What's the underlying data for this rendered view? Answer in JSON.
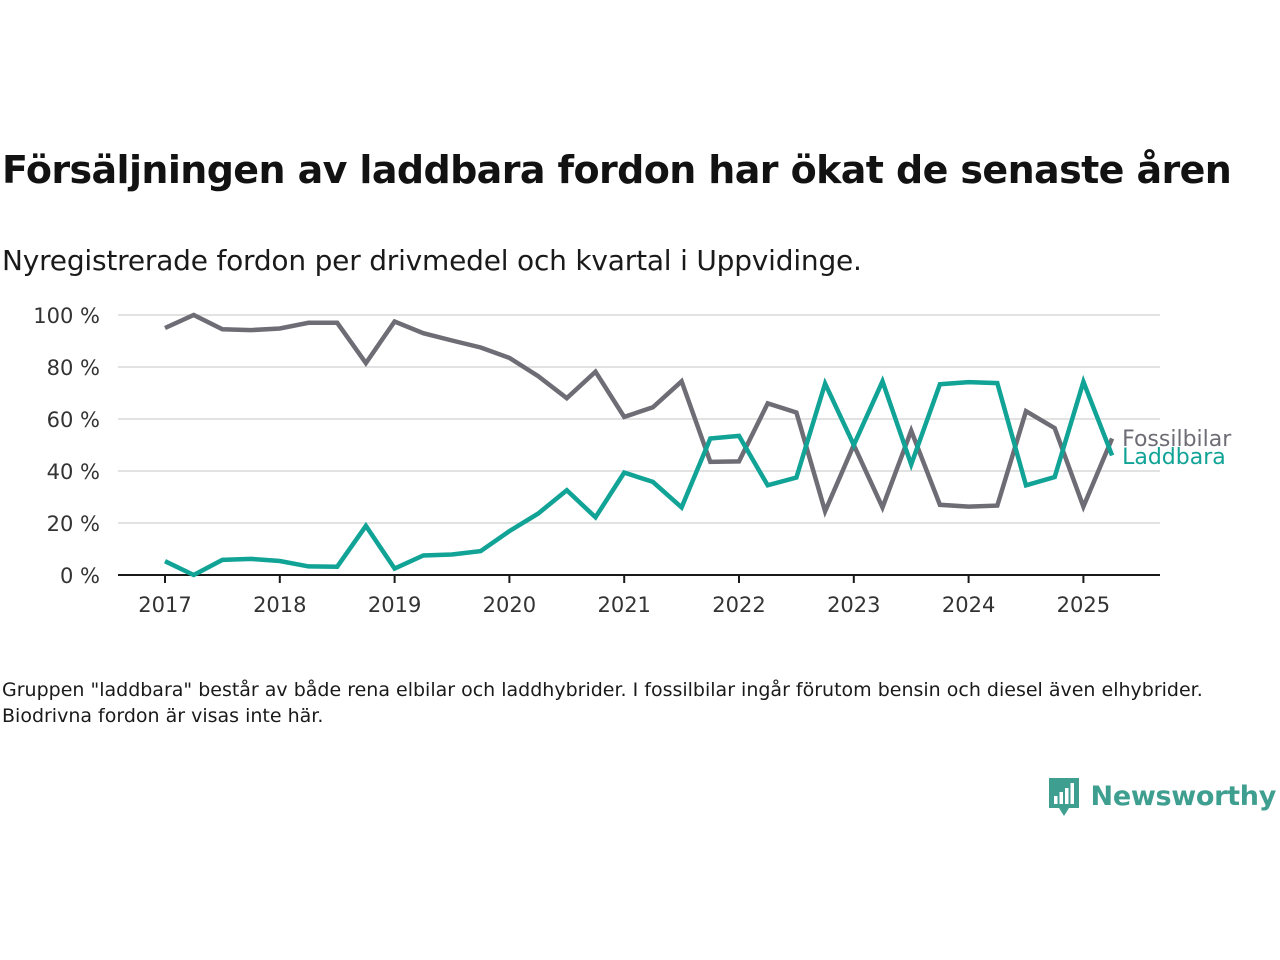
{
  "header": {
    "title": "Försäljningen av laddbara fordon har ökat de senaste åren",
    "subtitle": "Nyregistrerade fordon per drivmedel och kvartal i Uppvidinge."
  },
  "chart_data": {
    "type": "line",
    "x": [
      "2017 Q1",
      "2017 Q2",
      "2017 Q3",
      "2017 Q4",
      "2018 Q1",
      "2018 Q2",
      "2018 Q3",
      "2018 Q4",
      "2019 Q1",
      "2019 Q2",
      "2019 Q3",
      "2019 Q4",
      "2020 Q1",
      "2020 Q2",
      "2020 Q3",
      "2020 Q4",
      "2021 Q1",
      "2021 Q2",
      "2021 Q3",
      "2021 Q4",
      "2022 Q1",
      "2022 Q2",
      "2022 Q3",
      "2022 Q4",
      "2023 Q1",
      "2023 Q2",
      "2023 Q3",
      "2023 Q4",
      "2024 Q1",
      "2024 Q2",
      "2024 Q3",
      "2024 Q4",
      "2025 Q1",
      "2025 Q2"
    ],
    "x_ticks": [
      "2017",
      "2018",
      "2019",
      "2020",
      "2021",
      "2022",
      "2023",
      "2024",
      "2025"
    ],
    "y_ticks": [
      "0 %",
      "20 %",
      "40 %",
      "60 %",
      "80 %",
      "100 %"
    ],
    "ylim": [
      0,
      100
    ],
    "grid": "horizontal",
    "legend": "direct labels at line ends",
    "series": [
      {
        "name": "Fossilbilar",
        "color": "#6e6d75",
        "values": [
          95,
          100,
          94.5,
          94.2,
          94.8,
          97,
          97,
          81.5,
          97.5,
          93,
          90.2,
          87.5,
          83.5,
          76.5,
          68,
          78.2,
          60.8,
          64.5,
          74.5,
          43.5,
          43.7,
          66,
          62.5,
          24.5,
          50,
          26,
          55.5,
          27,
          26.3,
          26.7,
          63,
          56.5,
          26.3,
          52.5
        ]
      },
      {
        "name": "Laddbara",
        "color": "#10a396",
        "values": [
          5.3,
          0,
          5.8,
          6.2,
          5.4,
          3.3,
          3.2,
          18.9,
          2.5,
          7.5,
          7.9,
          9.2,
          16.9,
          23.6,
          32.6,
          22.2,
          39.4,
          35.8,
          26,
          52.5,
          53.5,
          34.5,
          37.5,
          73.6,
          50,
          74.5,
          42.5,
          73.4,
          74.2,
          73.8,
          34.5,
          37.7,
          74.3,
          46
        ]
      }
    ]
  },
  "footer": {
    "note": "Gruppen \"laddbara\" består av både rena elbilar och laddhybrider. I fossilbilar ingår förutom bensin och diesel även elhybrider. Biodrivna fordon är visas inte här.",
    "brand": "Newsworthy",
    "brand_color": "#3e9e8f"
  }
}
